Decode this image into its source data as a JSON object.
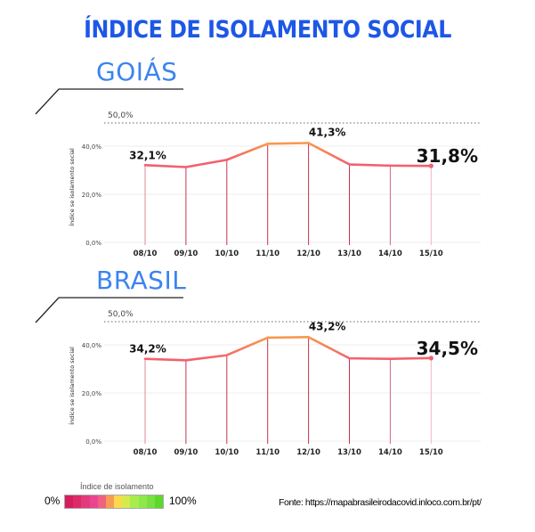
{
  "title": "ÍNDICE DE ISOLAMENTO SOCIAL",
  "legend": {
    "title": "Índice de isolamento",
    "min": "0%",
    "max": "100%",
    "colors": [
      "#d61d5e",
      "#dc2a6a",
      "#e33a7d",
      "#ea4690",
      "#f06080",
      "#f79c55",
      "#fbd94c",
      "#d4ea4f",
      "#a8ec4e",
      "#8ee84a",
      "#78e040",
      "#5cd82a"
    ]
  },
  "source": "Fonte: https://mapabrasileirodacovid.inloco.com.br/pt/",
  "chart_data": [
    {
      "type": "line",
      "title": "GOIÁS",
      "ylabel": "Índice se isolamento social",
      "ylim": [
        0,
        50
      ],
      "yticks": [
        "0,0%",
        "20,0%",
        "40,0%",
        "50,0%"
      ],
      "categories": [
        "08/10",
        "09/10",
        "10/10",
        "11/10",
        "12/10",
        "13/10",
        "14/10",
        "15/10"
      ],
      "values": [
        32.1,
        31.3,
        34.3,
        41.0,
        41.3,
        32.4,
        31.9,
        31.8
      ],
      "labels": {
        "first": "32,1%",
        "peak": "41,3%",
        "last": "31,8%"
      }
    },
    {
      "type": "line",
      "title": "BRASIL",
      "ylabel": "Índice se isolamento social",
      "ylim": [
        0,
        50
      ],
      "yticks": [
        "0,0%",
        "20,0%",
        "40,0%",
        "50,0%"
      ],
      "categories": [
        "08/10",
        "09/10",
        "10/10",
        "11/10",
        "12/10",
        "13/10",
        "14/10",
        "15/10"
      ],
      "values": [
        34.2,
        33.6,
        35.7,
        43.0,
        43.2,
        34.4,
        34.2,
        34.5
      ],
      "labels": {
        "first": "34,2%",
        "peak": "43,2%",
        "last": "34,5%"
      }
    }
  ]
}
